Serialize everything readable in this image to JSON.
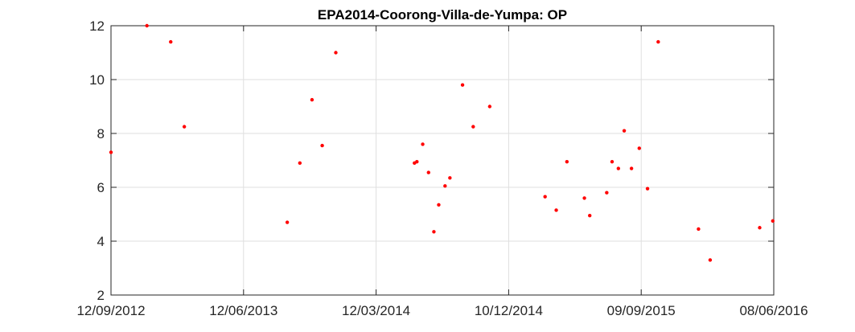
{
  "chart_data": {
    "type": "scatter",
    "title": "EPA2014-Coorong-Villa-de-Yumpa: OP",
    "xlabel": "",
    "ylabel": "",
    "x_is_date": true,
    "xlim": [
      "2012-09-12",
      "2016-06-08"
    ],
    "ylim": [
      2,
      12
    ],
    "x_ticks": [
      "2012-09-12",
      "2013-06-12",
      "2014-03-12",
      "2014-12-10",
      "2015-09-09",
      "2016-06-08"
    ],
    "x_tick_labels": [
      "12/09/2012",
      "12/06/2013",
      "12/03/2014",
      "10/12/2014",
      "09/09/2015",
      "08/06/2016"
    ],
    "y_ticks": [
      2,
      4,
      6,
      8,
      10,
      12
    ],
    "y_tick_labels": [
      "2",
      "4",
      "6",
      "8",
      "10",
      "12"
    ],
    "grid": true,
    "marker_color": "#ff0000",
    "points": [
      {
        "x": "2012-09-12",
        "y": 7.3
      },
      {
        "x": "2012-11-25",
        "y": 12.0
      },
      {
        "x": "2013-01-13",
        "y": 11.4
      },
      {
        "x": "2013-02-10",
        "y": 8.25
      },
      {
        "x": "2013-09-10",
        "y": 4.7
      },
      {
        "x": "2013-10-06",
        "y": 6.9
      },
      {
        "x": "2013-10-31",
        "y": 9.25
      },
      {
        "x": "2013-11-21",
        "y": 7.55
      },
      {
        "x": "2013-12-19",
        "y": 11.0
      },
      {
        "x": "2014-05-30",
        "y": 6.9
      },
      {
        "x": "2014-06-04",
        "y": 6.95
      },
      {
        "x": "2014-06-16",
        "y": 7.6
      },
      {
        "x": "2014-06-28",
        "y": 6.55
      },
      {
        "x": "2014-07-09",
        "y": 4.35
      },
      {
        "x": "2014-07-19",
        "y": 5.35
      },
      {
        "x": "2014-08-01",
        "y": 6.05
      },
      {
        "x": "2014-08-11",
        "y": 6.35
      },
      {
        "x": "2014-09-06",
        "y": 9.8
      },
      {
        "x": "2014-09-28",
        "y": 8.25
      },
      {
        "x": "2014-11-01",
        "y": 9.0
      },
      {
        "x": "2015-02-23",
        "y": 5.65
      },
      {
        "x": "2015-03-18",
        "y": 5.15
      },
      {
        "x": "2015-04-09",
        "y": 6.95
      },
      {
        "x": "2015-05-15",
        "y": 5.6
      },
      {
        "x": "2015-05-26",
        "y": 4.95
      },
      {
        "x": "2015-06-30",
        "y": 5.8
      },
      {
        "x": "2015-07-11",
        "y": 6.95
      },
      {
        "x": "2015-07-24",
        "y": 6.7
      },
      {
        "x": "2015-08-05",
        "y": 8.1
      },
      {
        "x": "2015-08-20",
        "y": 6.7
      },
      {
        "x": "2015-09-05",
        "y": 7.45
      },
      {
        "x": "2015-09-22",
        "y": 5.95
      },
      {
        "x": "2015-10-14",
        "y": 11.4
      },
      {
        "x": "2016-01-05",
        "y": 4.45
      },
      {
        "x": "2016-01-29",
        "y": 3.3
      },
      {
        "x": "2016-05-10",
        "y": 4.5
      },
      {
        "x": "2016-06-06",
        "y": 4.75
      }
    ]
  }
}
